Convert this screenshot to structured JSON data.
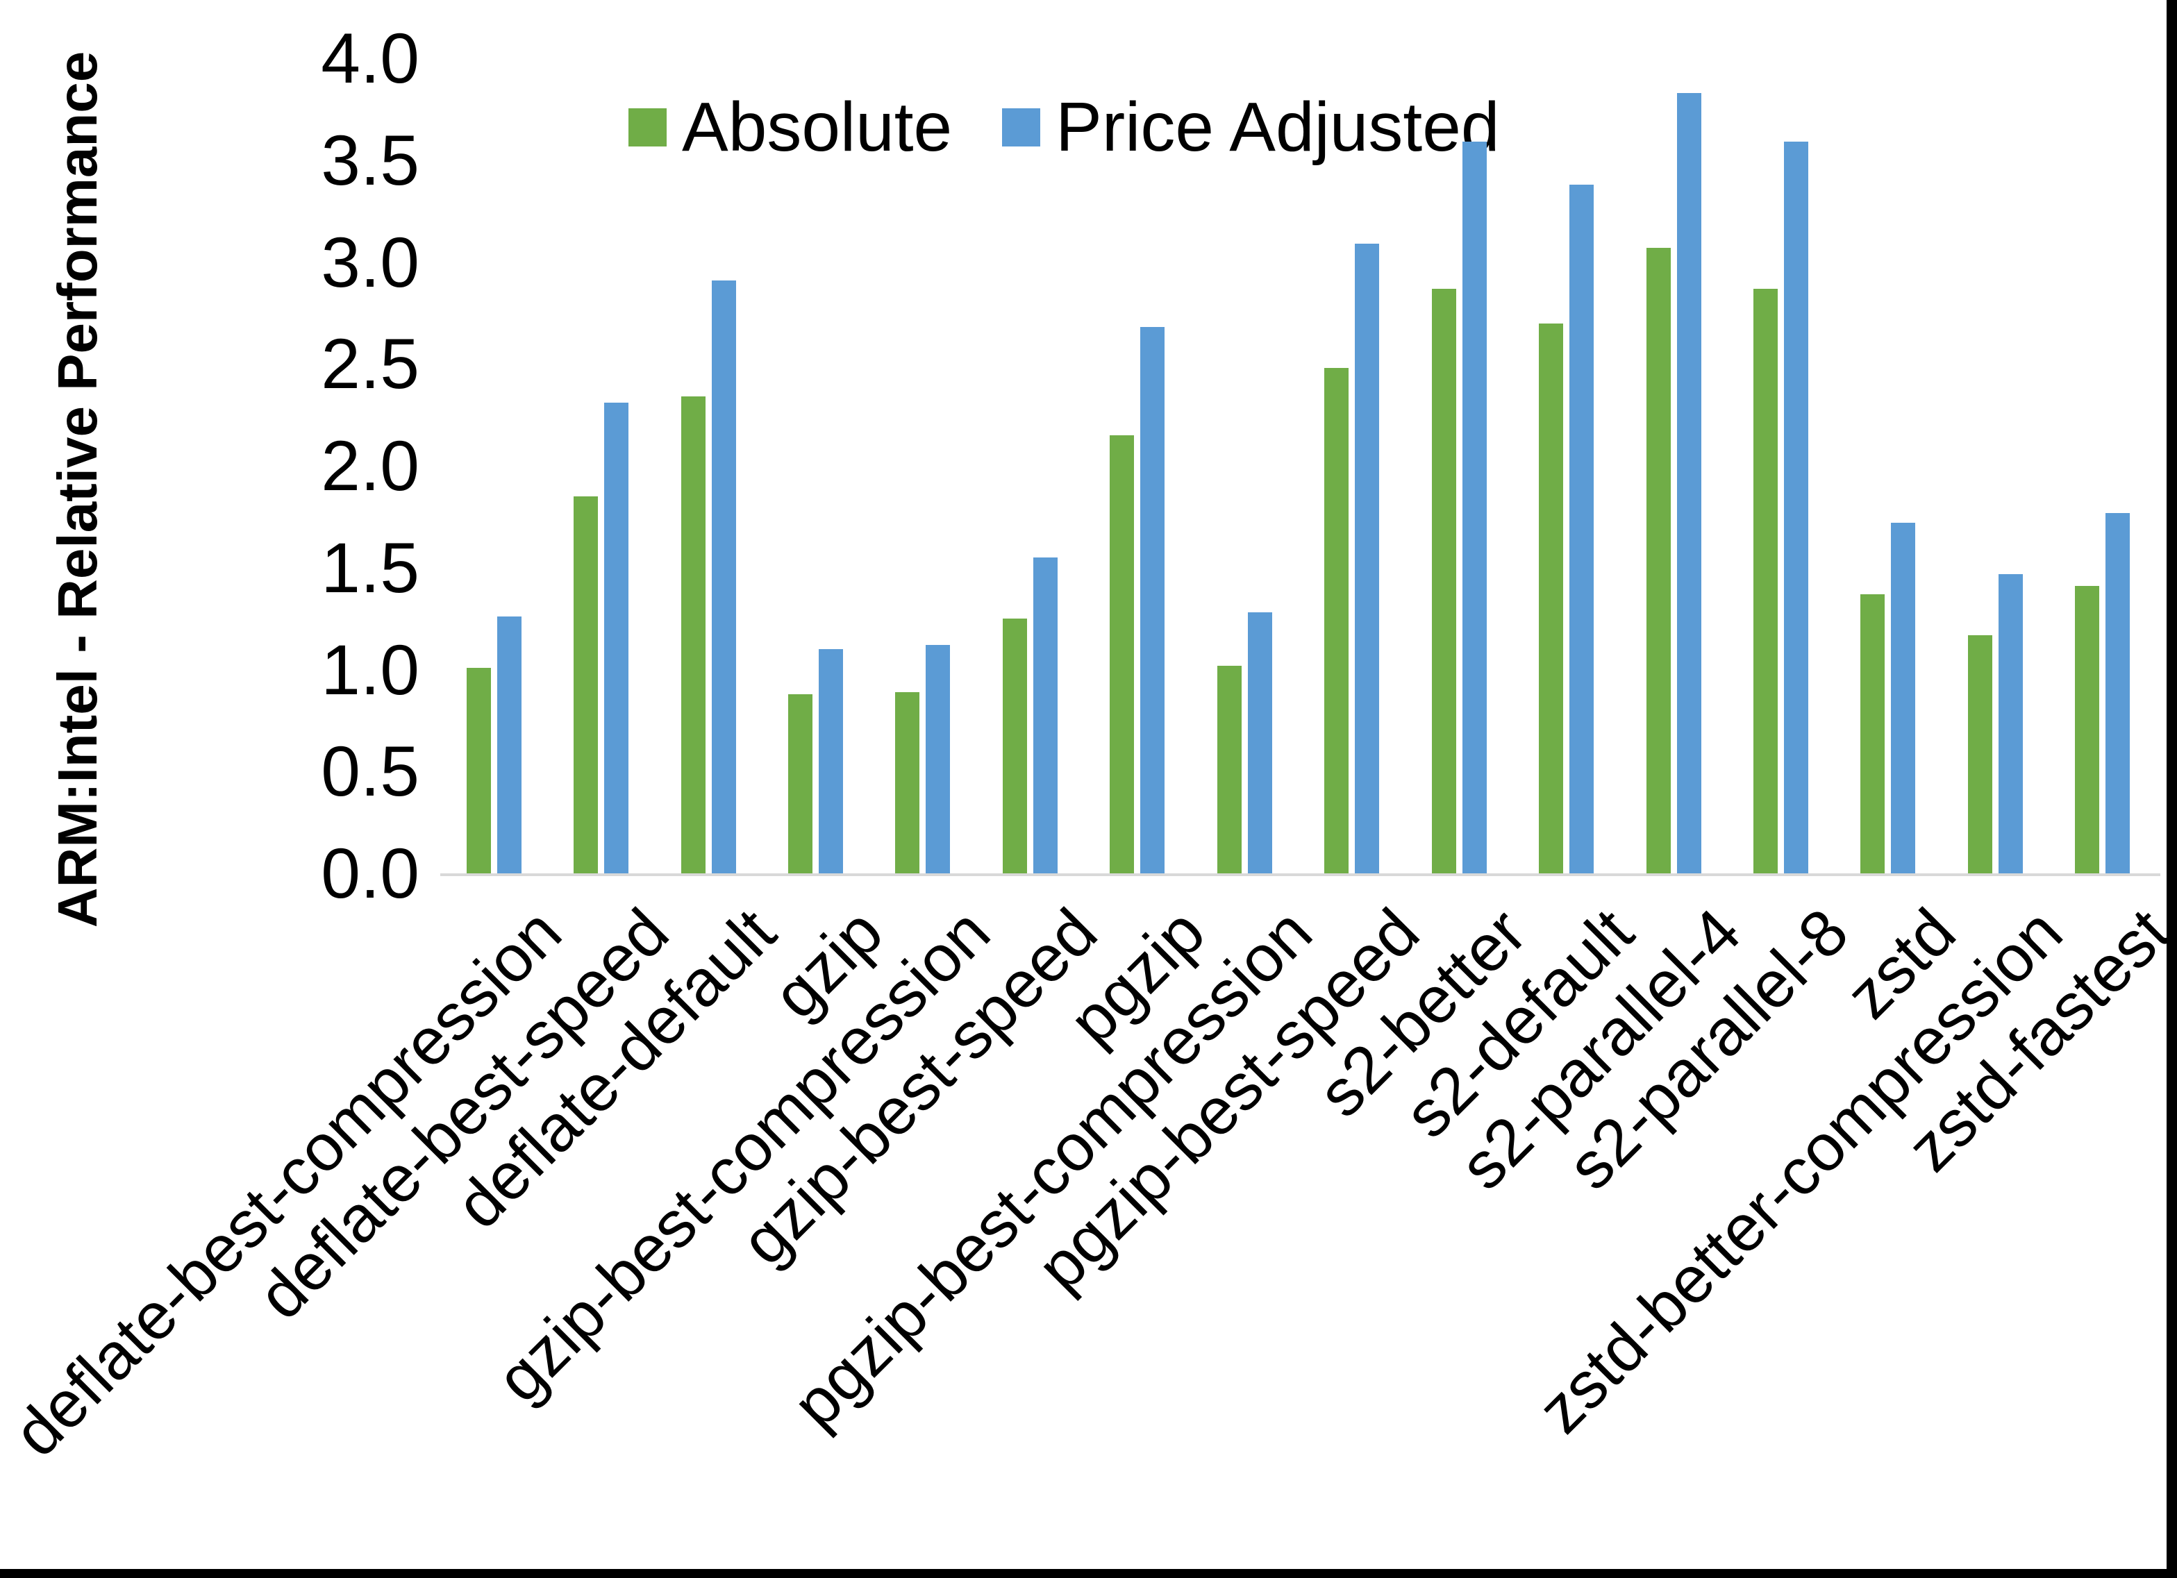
{
  "window": {
    "background": "#ffffff",
    "border_color": "#000000"
  },
  "chart_data": {
    "type": "bar",
    "title": "",
    "xlabel": "",
    "ylabel": "ARM:Intel - Relative Performance",
    "ylim": [
      0.0,
      4.0
    ],
    "ytick_step": 0.5,
    "grid": false,
    "legend_position": "top-center",
    "axis_line_color": "#d9d9d9",
    "categories": [
      "deflate-best-compression",
      "deflate-best-speed",
      "deflate-default",
      "gzip",
      "gzip-best-compression",
      "gzip-best-speed",
      "pgzip",
      "pgzip-best-compression",
      "pgzip-best-speed",
      "s2-better",
      "s2-default",
      "s2-parallel-4",
      "s2-parallel-8",
      "zstd",
      "zstd-better-compression",
      "zstd-fastest"
    ],
    "series": [
      {
        "name": "Absolute",
        "color": "#70AD47",
        "values": [
          1.01,
          1.85,
          2.34,
          0.88,
          0.89,
          1.25,
          2.15,
          1.02,
          2.48,
          2.87,
          2.7,
          3.07,
          2.87,
          1.37,
          1.17,
          1.41
        ]
      },
      {
        "name": "Price Adjusted",
        "color": "#5B9BD5",
        "values": [
          1.26,
          2.31,
          2.91,
          1.1,
          1.12,
          1.55,
          2.68,
          1.28,
          3.09,
          3.59,
          3.38,
          3.83,
          3.59,
          1.72,
          1.47,
          1.77
        ]
      }
    ]
  }
}
